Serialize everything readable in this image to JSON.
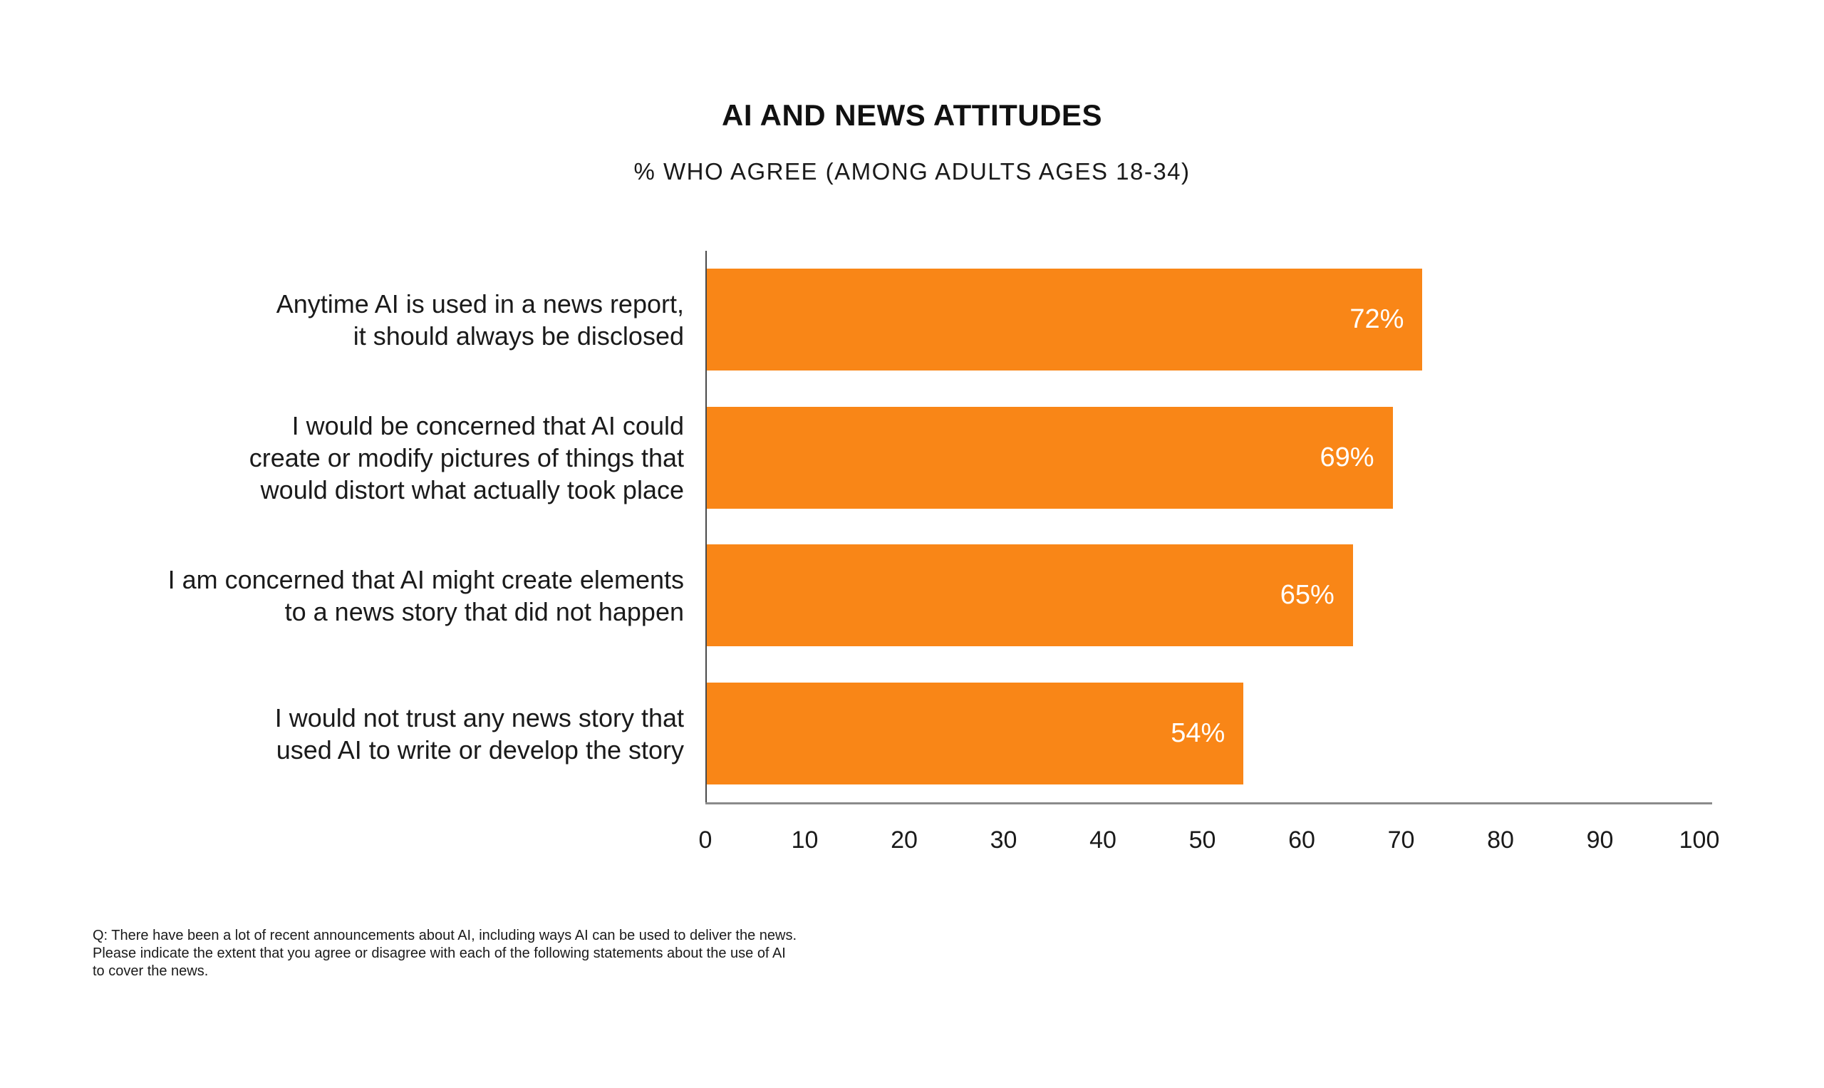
{
  "header": {
    "title": "AI AND NEWS ATTITUDES",
    "subtitle": "% WHO AGREE (AMONG ADULTS AGES 18-34)"
  },
  "chart_data": {
    "type": "bar",
    "orientation": "horizontal",
    "title": "AI AND NEWS ATTITUDES",
    "subtitle": "% WHO AGREE (AMONG ADULTS AGES 18-34)",
    "categories": [
      "Anytime AI is used in a news report,\nit should always be disclosed",
      "I would be concerned that AI could\ncreate or modify pictures of things that\nwould distort what actually took place",
      "I am concerned that AI might create elements\nto a news story that did not happen",
      "I would not trust any news story that\nused AI to write or develop the story"
    ],
    "values": [
      72,
      69,
      65,
      54
    ],
    "value_labels": [
      "72%",
      "69%",
      "65%",
      "54%"
    ],
    "xlim": [
      0,
      100
    ],
    "x_ticks": [
      0,
      10,
      20,
      30,
      40,
      50,
      60,
      70,
      80,
      90,
      100
    ],
    "bar_color": "#F98617",
    "value_label_color": "#FFFFFF",
    "axis_line_color": "#8a8a8a",
    "grid": false,
    "legend": false
  },
  "footnote": {
    "text": "Q: There have been a lot of recent announcements about AI, including ways AI can be used to deliver the news.\nPlease indicate the extent that you agree or disagree with each of the following statements about the use of AI\nto cover the news."
  }
}
